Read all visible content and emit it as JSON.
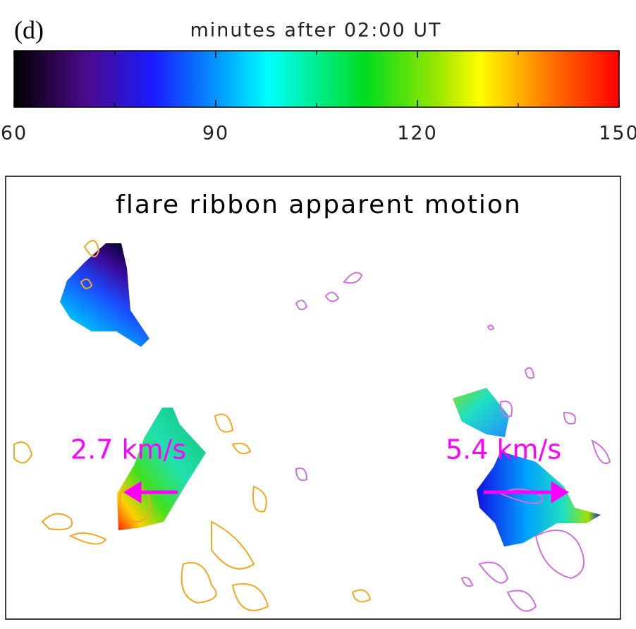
{
  "chart_data": {
    "type": "colorbar-image",
    "panel_label": "(d)",
    "colorbar": {
      "title": "minutes after 02:00 UT",
      "lim": [
        60,
        150
      ],
      "ticks": [
        60,
        90,
        120,
        150
      ],
      "minor_ticks": [
        75,
        105,
        135
      ]
    },
    "title": "flare ribbon apparent motion",
    "annotations": [
      "2.7 km/s",
      "5.4 km/s"
    ]
  }
}
